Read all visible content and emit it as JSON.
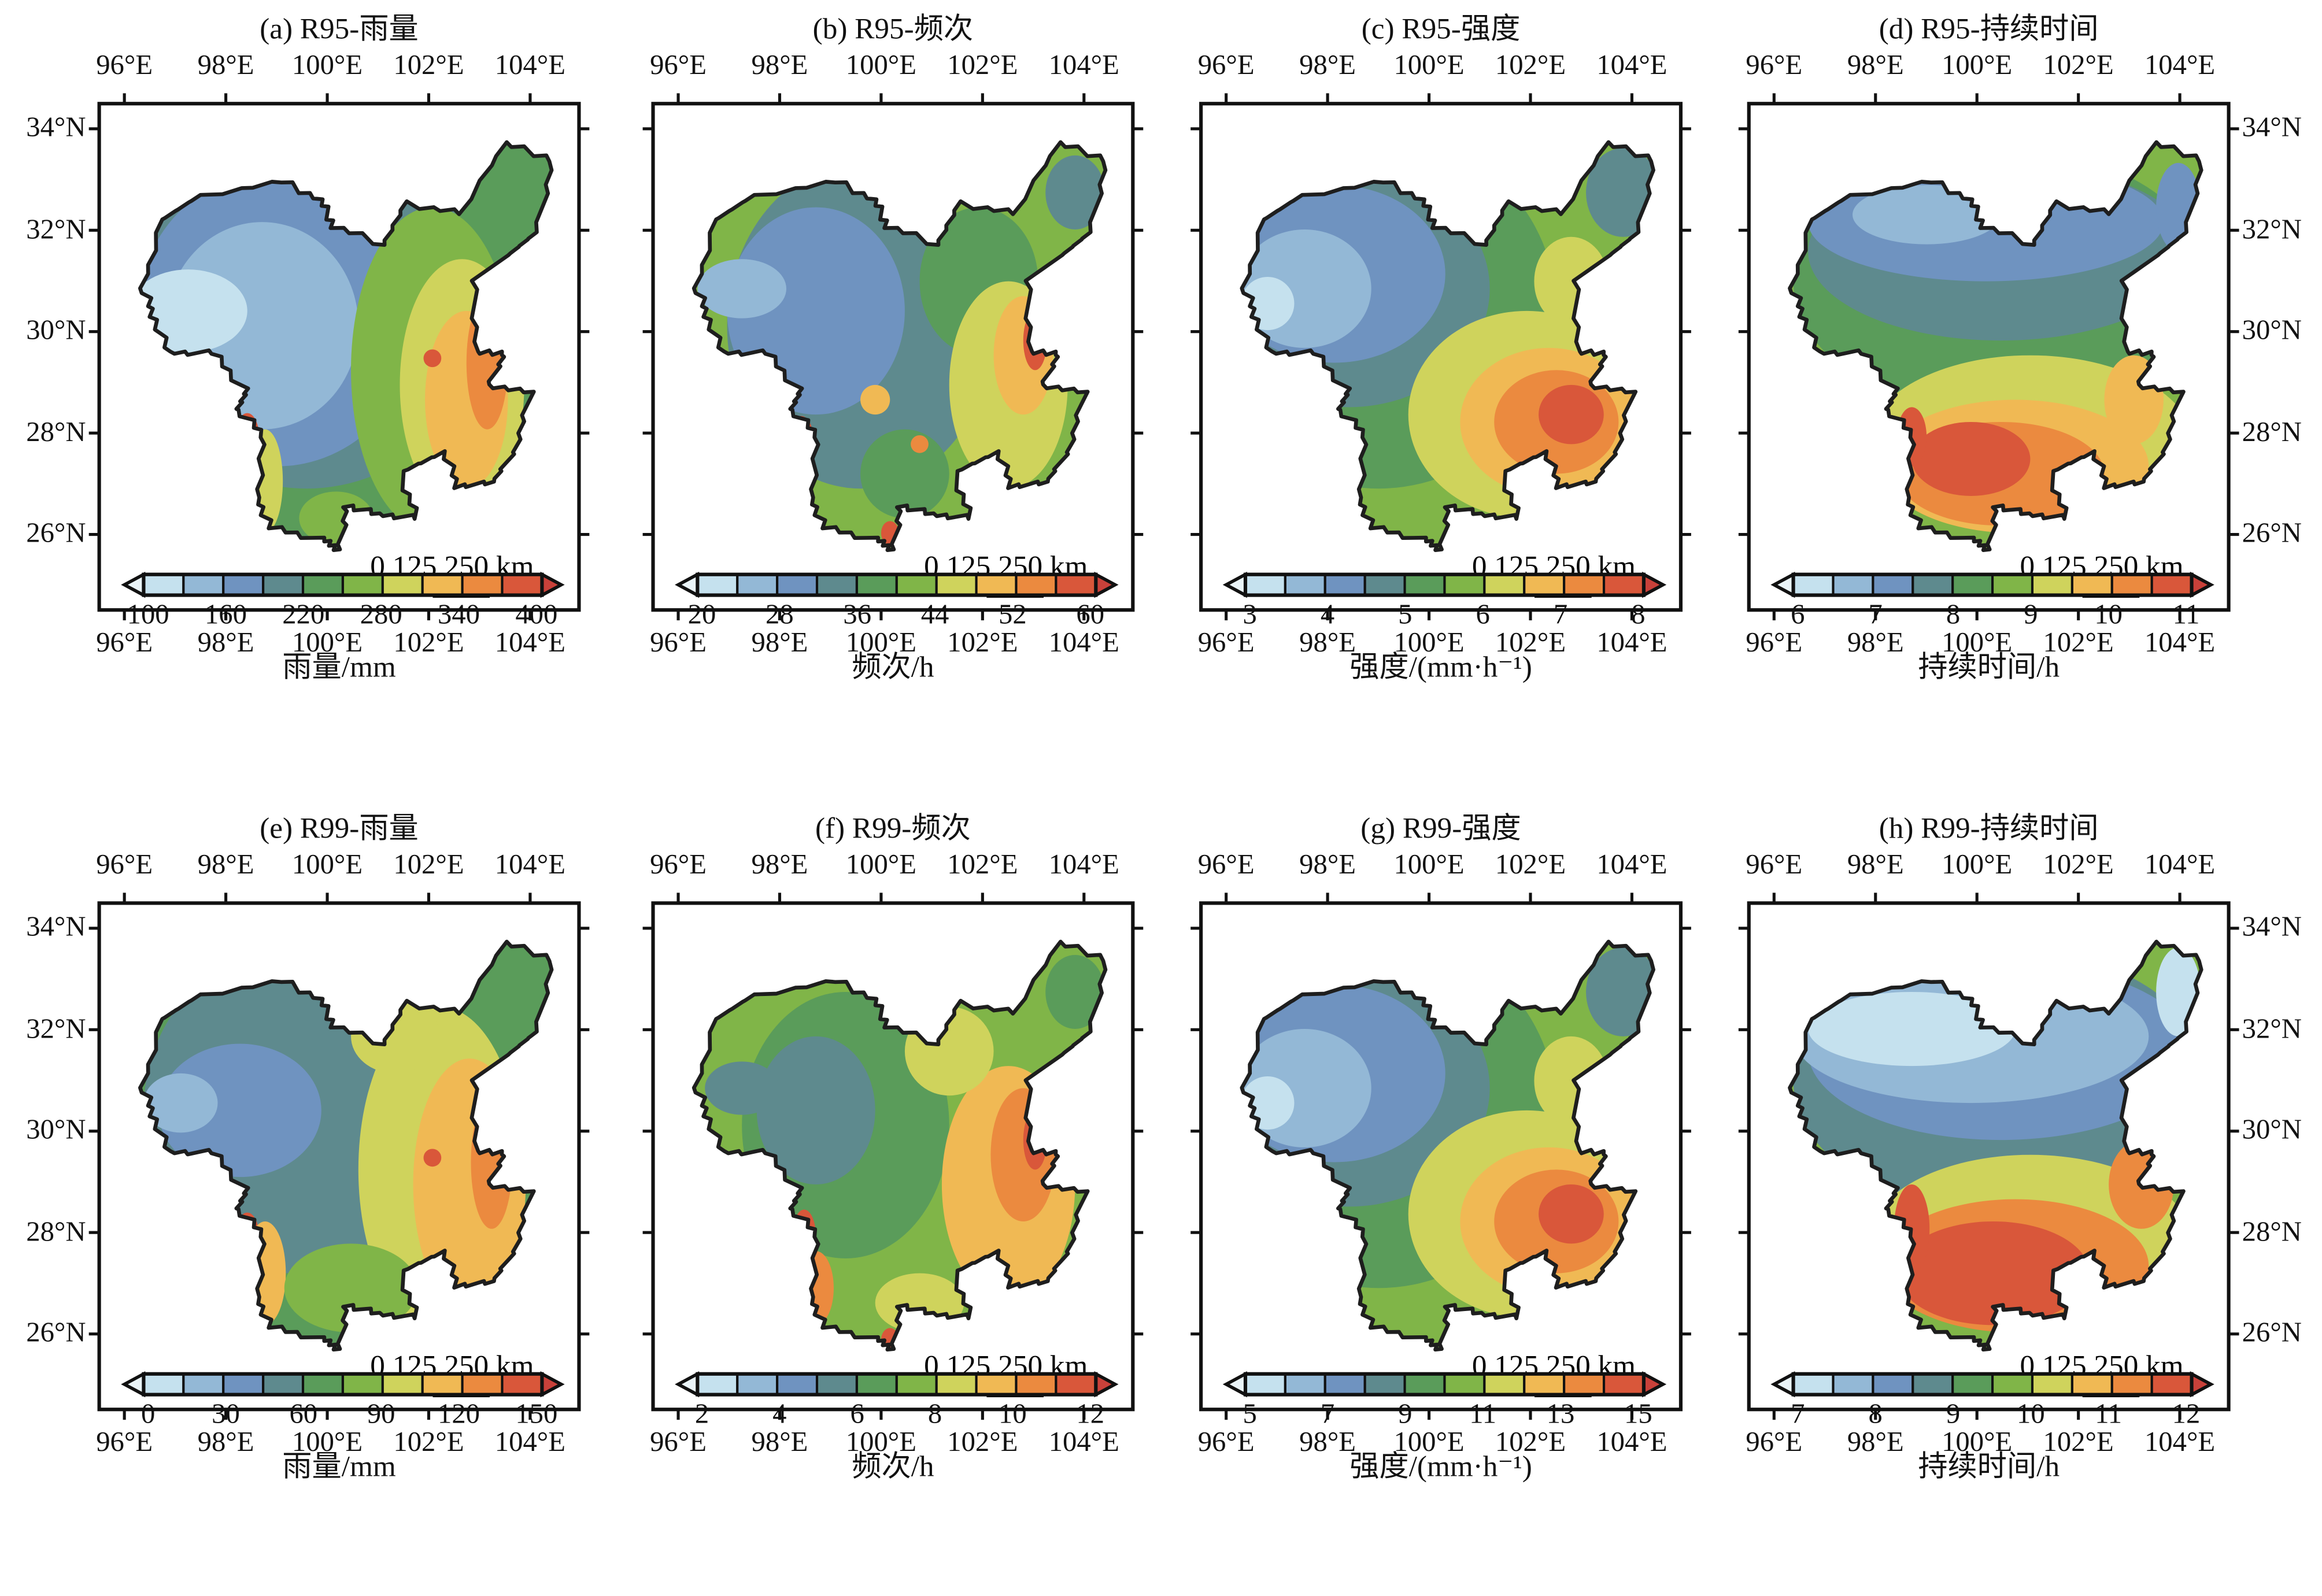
{
  "colors": [
    "#c5e1ee",
    "#93b8d6",
    "#6f93c0",
    "#5e8a8e",
    "#5a9c5a",
    "#80b548",
    "#cfd35c",
    "#f0b954",
    "#eb8a3f",
    "#d9573a"
  ],
  "arrow_low_color": "#eaf4f8",
  "arrow_high_color": "#c9413a",
  "lon_ticks": [
    "96°E",
    "98°E",
    "100°E",
    "102°E",
    "104°E"
  ],
  "lat_ticks": [
    "34°N",
    "32°N",
    "30°N",
    "28°N",
    "26°N"
  ],
  "scale_bar": {
    "label": "0  125 250 km",
    "values_km": [
      0,
      125,
      250
    ]
  },
  "chart_data": [
    {
      "type": "heatmap",
      "title": "(a) R95-雨量",
      "pattern": "west-east",
      "colorbar": {
        "ticks": [
          "100",
          "160",
          "220",
          "280",
          "340",
          "400"
        ],
        "range": [
          100,
          400
        ],
        "label": "雨量/mm"
      }
    },
    {
      "type": "heatmap",
      "title": "(b) R95-频次",
      "pattern": "mixed",
      "colorbar": {
        "ticks": [
          "20",
          "28",
          "36",
          "44",
          "52",
          "60"
        ],
        "range": [
          20,
          60
        ],
        "label": "频次/h"
      }
    },
    {
      "type": "heatmap",
      "title": "(c) R95-强度",
      "pattern": "nw-se",
      "colorbar": {
        "ticks": [
          "3",
          "4",
          "5",
          "6",
          "7",
          "8"
        ],
        "range": [
          3,
          8
        ],
        "label": "强度/(mm·h⁻¹)"
      }
    },
    {
      "type": "heatmap",
      "title": "(d) R95-持续时间",
      "pattern": "north-south",
      "colorbar": {
        "ticks": [
          "6",
          "7",
          "8",
          "9",
          "10",
          "11"
        ],
        "range": [
          6,
          11
        ],
        "label": "持续时间/h"
      }
    },
    {
      "type": "heatmap",
      "title": "(e) R99-雨量",
      "pattern": "west-east-green",
      "colorbar": {
        "ticks": [
          "0",
          "30",
          "60",
          "90",
          "120",
          "150"
        ],
        "range": [
          0,
          150
        ],
        "label": "雨量/mm"
      }
    },
    {
      "type": "heatmap",
      "title": "(f) R99-频次",
      "pattern": "mixed-warm",
      "colorbar": {
        "ticks": [
          "2",
          "4",
          "6",
          "8",
          "10",
          "12"
        ],
        "range": [
          2,
          12
        ],
        "label": "频次/h"
      }
    },
    {
      "type": "heatmap",
      "title": "(g) R99-强度",
      "pattern": "nw-se",
      "colorbar": {
        "ticks": [
          "5",
          "7",
          "9",
          "11",
          "13",
          "15"
        ],
        "range": [
          5,
          15
        ],
        "label": "强度/(mm·h⁻¹)"
      }
    },
    {
      "type": "heatmap",
      "title": "(h) R99-持续时间",
      "pattern": "north-south-strong",
      "colorbar": {
        "ticks": [
          "7",
          "8",
          "9",
          "10",
          "11",
          "12"
        ],
        "range": [
          7,
          12
        ],
        "label": "持续时间/h"
      }
    }
  ]
}
